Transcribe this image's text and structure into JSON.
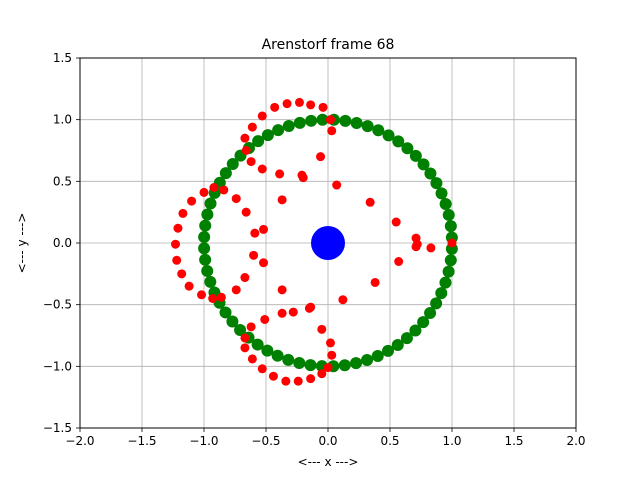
{
  "chart_data": {
    "type": "scatter",
    "title": "Arenstorf frame 68",
    "xlabel": "<---  x  --->",
    "ylabel": "<---  y  --->",
    "xlim": [
      -2.0,
      2.0
    ],
    "ylim": [
      -1.5,
      1.5
    ],
    "xticks": [
      "−2.0",
      "−1.5",
      "−1.0",
      "−0.5",
      "0.0",
      "0.5",
      "1.0",
      "1.5",
      "2.0"
    ],
    "yticks": [
      "−1.5",
      "−1.0",
      "−0.5",
      "0.0",
      "0.5",
      "1.0",
      "1.5"
    ],
    "xtick_values": [
      -2.0,
      -1.5,
      -1.0,
      -0.5,
      0.0,
      0.5,
      1.0,
      1.5,
      2.0
    ],
    "ytick_values": [
      -1.5,
      -1.0,
      -0.5,
      0.0,
      0.5,
      1.0,
      1.5
    ],
    "grid": true,
    "legend": "none",
    "colors": {
      "earth": "#0000ff",
      "moon": "#008000",
      "orbit": "#ff0000",
      "grid": "#b0b0b0"
    },
    "series": [
      {
        "role": "earth",
        "points": [
          [
            0.0,
            0.0
          ]
        ]
      },
      {
        "role": "moon-trail",
        "circle_radius": 1.0,
        "count": 68
      },
      {
        "role": "orbit",
        "points": [
          [
            1.0,
            0.0
          ],
          [
            0.83,
            -0.04
          ],
          [
            0.71,
            -0.03
          ],
          [
            0.57,
            -0.15
          ],
          [
            0.38,
            -0.32
          ],
          [
            0.12,
            -0.46
          ],
          [
            -0.14,
            -0.52
          ],
          [
            -0.28,
            -0.56
          ],
          [
            -0.37,
            -0.57
          ],
          [
            -0.37,
            -0.38
          ],
          [
            -0.52,
            -0.16
          ],
          [
            -0.6,
            -0.1
          ],
          [
            -0.67,
            -0.28
          ],
          [
            -0.74,
            -0.38
          ],
          [
            -0.86,
            -0.44
          ],
          [
            -0.93,
            -0.45
          ],
          [
            -1.02,
            -0.42
          ],
          [
            -1.12,
            -0.35
          ],
          [
            -1.18,
            -0.25
          ],
          [
            -1.22,
            -0.14
          ],
          [
            -1.23,
            -0.01
          ],
          [
            -1.21,
            0.12
          ],
          [
            -1.17,
            0.24
          ],
          [
            -1.1,
            0.34
          ],
          [
            -1.0,
            0.41
          ],
          [
            -0.92,
            0.45
          ],
          [
            -0.84,
            0.43
          ],
          [
            -0.74,
            0.36
          ],
          [
            -0.66,
            0.25
          ],
          [
            -0.59,
            0.08
          ],
          [
            -0.52,
            0.11
          ],
          [
            -0.53,
            0.6
          ],
          [
            -0.62,
            0.66
          ],
          [
            -0.66,
            0.75
          ],
          [
            -0.67,
            0.85
          ],
          [
            -0.61,
            0.94
          ],
          [
            -0.53,
            1.03
          ],
          [
            -0.43,
            1.1
          ],
          [
            -0.33,
            1.13
          ],
          [
            -0.23,
            1.14
          ],
          [
            -0.14,
            1.12
          ],
          [
            -0.04,
            1.1
          ],
          [
            0.02,
            1.0
          ],
          [
            0.03,
            0.91
          ],
          [
            -0.06,
            0.7
          ],
          [
            -0.21,
            0.55
          ],
          [
            -0.2,
            0.53
          ],
          [
            -0.39,
            0.56
          ],
          [
            -0.37,
            0.35
          ],
          [
            0.07,
            0.47
          ],
          [
            0.34,
            0.33
          ],
          [
            0.55,
            0.17
          ],
          [
            0.71,
            0.04
          ],
          [
            0.72,
            -0.01
          ],
          [
            -0.05,
            -0.7
          ],
          [
            0.02,
            -0.81
          ],
          [
            0.03,
            -0.91
          ],
          [
            0.0,
            -1.01
          ],
          [
            -0.05,
            -1.06
          ],
          [
            -0.14,
            -1.1
          ],
          [
            -0.24,
            -1.12
          ],
          [
            -0.34,
            -1.12
          ],
          [
            -0.44,
            -1.08
          ],
          [
            -0.53,
            -1.02
          ],
          [
            -0.61,
            -0.94
          ],
          [
            -0.67,
            -0.85
          ],
          [
            -0.67,
            -0.77
          ],
          [
            -0.62,
            -0.68
          ],
          [
            -0.51,
            -0.62
          ],
          [
            -0.15,
            -0.53
          ]
        ]
      }
    ]
  }
}
